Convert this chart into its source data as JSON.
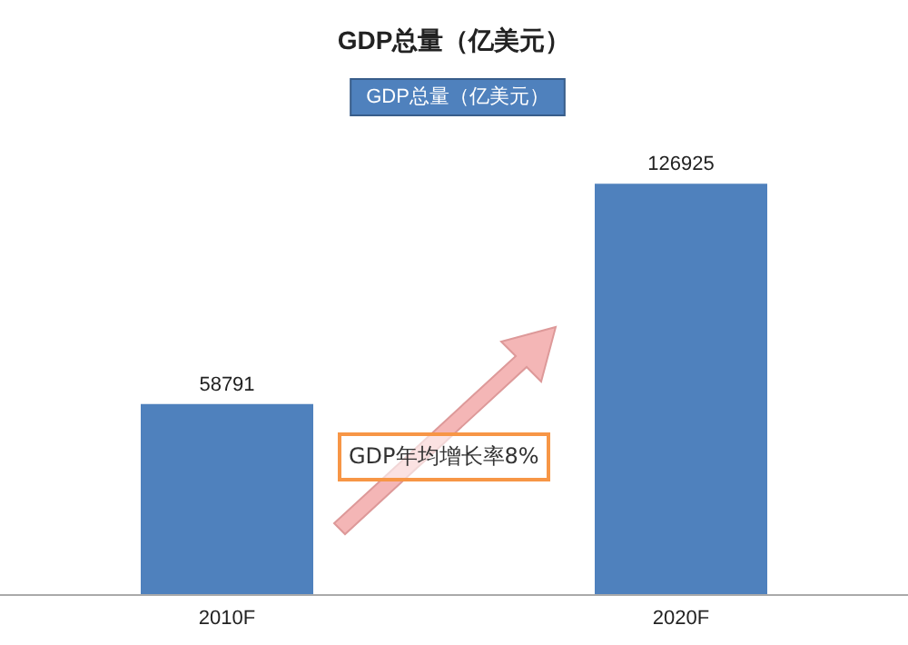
{
  "chart_data": {
    "type": "bar",
    "title": "GDP总量（亿美元）",
    "categories": [
      "2010F",
      "2020F"
    ],
    "series": [
      {
        "name": "GDP总量（亿美元）",
        "color": "#4f81bd",
        "values": [
          58791,
          126925
        ]
      }
    ],
    "tick_labels": "x",
    "data_labels": true,
    "legend": "top",
    "grid": false,
    "annotations": [
      "GDP年均增长率8%"
    ]
  }
}
